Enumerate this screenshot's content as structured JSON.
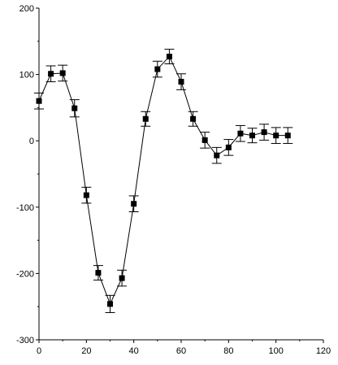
{
  "chart_data": {
    "type": "scatter",
    "title": "",
    "xlabel": "",
    "ylabel": "",
    "xlim": [
      0,
      120
    ],
    "ylim": [
      -300,
      200
    ],
    "xticks": [
      0,
      20,
      40,
      60,
      80,
      100,
      120
    ],
    "yticks": [
      -300,
      -200,
      -100,
      0,
      100,
      200
    ],
    "xtick_labels": [
      "0",
      "20",
      "40",
      "60",
      "80",
      "100",
      "120"
    ],
    "ytick_labels": [
      "-300",
      "-200",
      "-100",
      "0",
      "100",
      "200"
    ],
    "grid": false,
    "line": true,
    "marker": "square",
    "series": [
      {
        "x": [
          0,
          5,
          10,
          15,
          20,
          25,
          30,
          35,
          40,
          45,
          50,
          55,
          60,
          65,
          70,
          75,
          80,
          85,
          90,
          95,
          100,
          105
        ],
        "y": [
          60,
          101,
          102,
          49,
          -82,
          -199,
          -246,
          -207,
          -95,
          33,
          108,
          127,
          89,
          33,
          1,
          -22,
          -10,
          11,
          8,
          13,
          8,
          8
        ],
        "err": [
          12,
          12,
          12,
          13,
          12,
          11,
          13,
          12,
          12,
          11,
          12,
          11,
          12,
          11,
          12,
          12,
          12,
          12,
          11,
          12,
          12,
          12
        ]
      }
    ]
  }
}
